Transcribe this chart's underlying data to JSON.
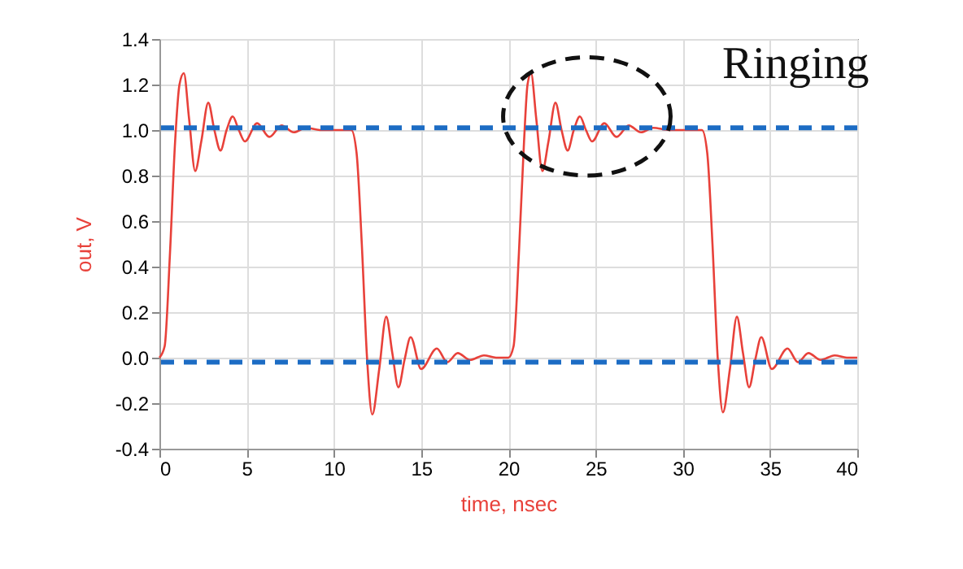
{
  "chart_data": {
    "type": "line",
    "xlabel": "time, nsec",
    "ylabel": "out, V",
    "annotations": [
      "Ringing"
    ],
    "x": [
      0,
      0.3,
      0.6,
      0.9,
      1.15,
      1.4,
      1.7,
      2.05,
      2.4,
      2.8,
      3.15,
      3.5,
      3.85,
      4.2,
      4.55,
      4.9,
      5.6,
      6.3,
      7.0,
      7.7,
      8.4,
      9.2,
      10.5,
      11.0,
      11.3,
      11.6,
      11.9,
      12.2,
      12.6,
      13.0,
      13.35,
      13.7,
      14.05,
      14.4,
      15.0,
      15.9,
      16.5,
      17.1,
      17.8,
      18.6,
      19.3,
      20.0,
      20.3,
      20.6,
      20.9,
      21.1,
      21.3,
      21.6,
      21.95,
      22.3,
      22.7,
      23.05,
      23.4,
      23.75,
      24.1,
      24.45,
      24.8,
      25.5,
      26.2,
      26.9,
      27.6,
      28.3,
      29.2,
      30.5,
      31.1,
      31.4,
      31.7,
      32.0,
      32.3,
      32.7,
      33.1,
      33.45,
      33.8,
      34.15,
      34.5,
      35.1,
      36.0,
      36.6,
      37.2,
      37.9,
      38.7,
      39.4,
      40.0
    ],
    "series": [
      {
        "color": "#e8413a",
        "values": [
          0,
          0.05,
          0.45,
          0.95,
          1.2,
          1.25,
          1.05,
          0.82,
          0.95,
          1.12,
          1.0,
          0.91,
          1.0,
          1.06,
          1.0,
          0.95,
          1.03,
          0.97,
          1.02,
          0.99,
          1.01,
          1.0,
          1.0,
          1.0,
          0.9,
          0.5,
          0.0,
          -0.25,
          -0.05,
          0.18,
          0.02,
          -0.13,
          -0.01,
          0.09,
          -0.05,
          0.04,
          -0.02,
          0.02,
          -0.01,
          0.01,
          0.0,
          0.0,
          0.05,
          0.45,
          0.95,
          1.2,
          1.25,
          1.05,
          0.82,
          0.95,
          1.12,
          1.0,
          0.91,
          1.0,
          1.06,
          1.0,
          0.95,
          1.03,
          0.97,
          1.02,
          0.99,
          1.01,
          1.0,
          1.0,
          1.0,
          0.9,
          0.5,
          0.0,
          -0.24,
          -0.05,
          0.18,
          0.02,
          -0.13,
          -0.01,
          0.09,
          -0.05,
          0.04,
          -0.02,
          0.02,
          -0.01,
          0.01,
          0.0,
          0.0
        ]
      }
    ],
    "xlim": [
      0,
      40
    ],
    "xticks": [
      0,
      5,
      10,
      15,
      20,
      25,
      30,
      35,
      40
    ],
    "ylim": [
      -0.4,
      1.4
    ],
    "yticks": [
      {
        "value": -0.4,
        "label": "-0.4"
      },
      {
        "value": -0.2,
        "label": "-0.2"
      },
      {
        "value": 0,
        "label": "0.0"
      },
      0.2,
      0.4,
      0.6,
      0.8,
      {
        "value": 1,
        "label": "1.0"
      },
      1.2,
      1.4
    ],
    "ref_lines": [
      {
        "axis": "y",
        "value": 1.01,
        "color": "#1c6cc4",
        "line_style": "dashed"
      },
      {
        "axis": "y",
        "value": -0.02,
        "color": "#1c6cc4",
        "line_style": "dashed"
      }
    ],
    "grid": true,
    "line_style": "solid"
  }
}
